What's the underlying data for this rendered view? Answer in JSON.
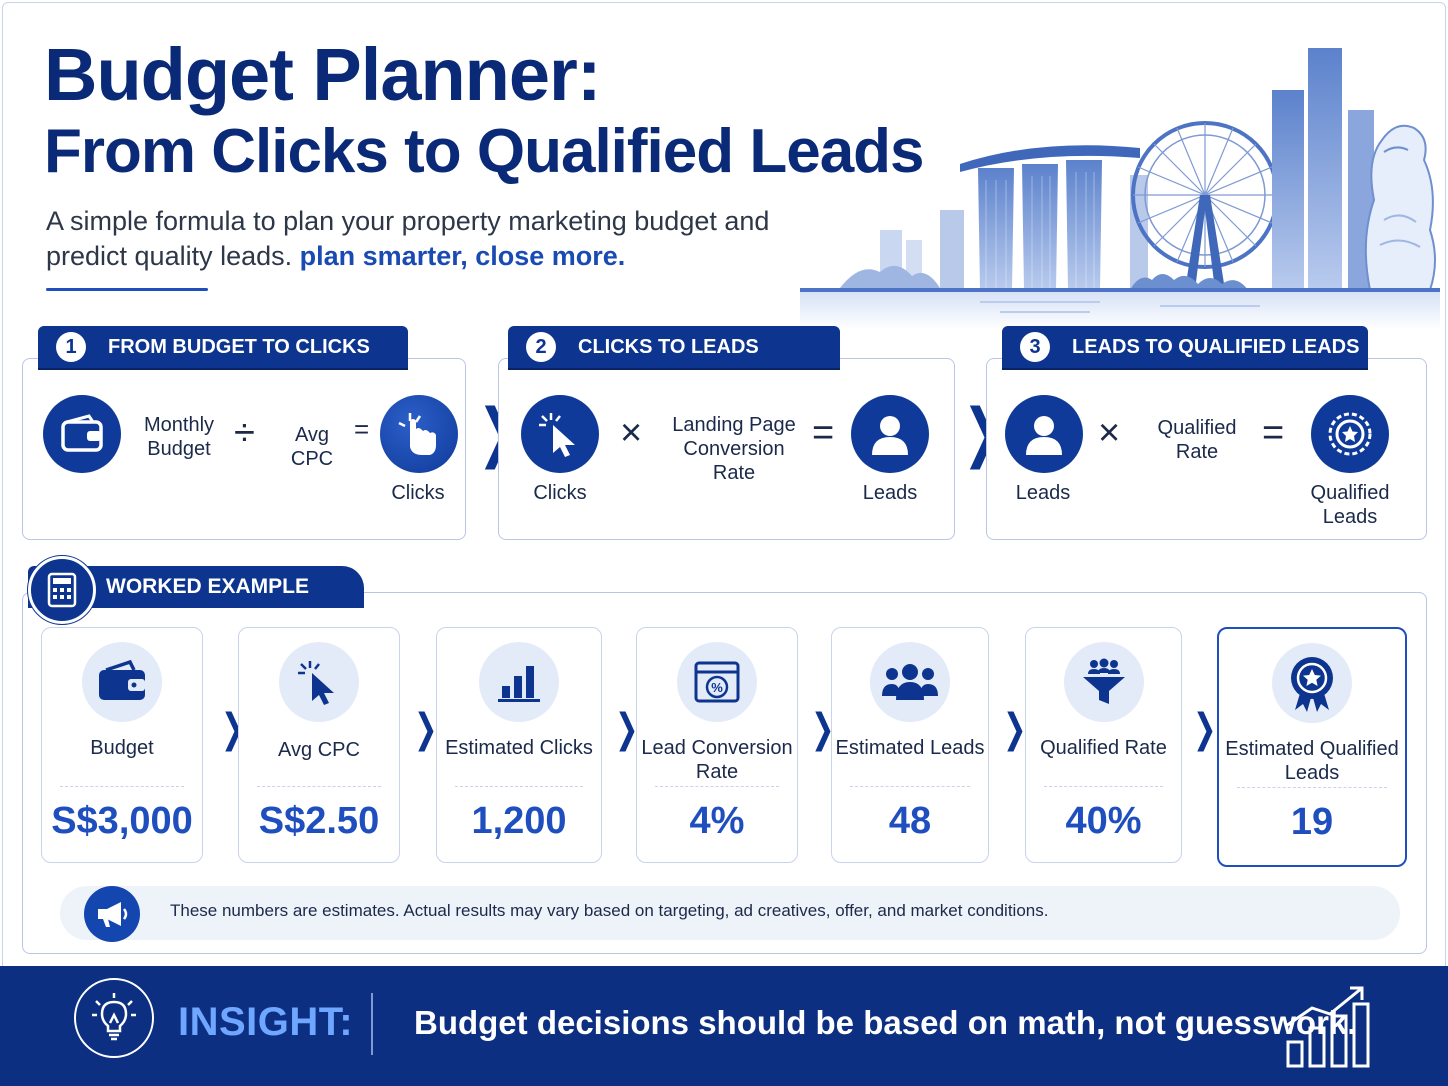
{
  "header": {
    "title_line1": "Budget Planner:",
    "title_line2": "From Clicks to Qualified Leads",
    "subtitle_part1": "A simple formula to plan your property marketing budget and predict quality leads.",
    "subtitle_highlight": "plan smarter, close more."
  },
  "steps": [
    {
      "number": "1",
      "title": "FROM BUDGET TO CLICKS",
      "input_label": "Monthly Budget",
      "operator1": "÷",
      "factor_label": "Avg CPC",
      "operator2": "=",
      "result_label": "Clicks"
    },
    {
      "number": "2",
      "title": "CLICKS TO LEADS",
      "input_label": "Clicks",
      "operator1": "×",
      "factor_label": "Landing Page Conversion Rate",
      "operator2": "=",
      "result_label": "Leads"
    },
    {
      "number": "3",
      "title": "LEADS TO QUALIFIED LEADS",
      "input_label": "Leads",
      "operator1": "×",
      "factor_label": "Qualified Rate",
      "operator2": "=",
      "result_label": "Qualified Leads"
    }
  ],
  "worked_example": {
    "title": "WORKED EXAMPLE",
    "cards": [
      {
        "label": "Budget",
        "value": "S$3,000",
        "icon": "wallet-icon"
      },
      {
        "label": "Avg CPC",
        "value": "S$2.50",
        "icon": "cursor-click-icon"
      },
      {
        "label": "Estimated Clicks",
        "value": "1,200",
        "icon": "bar-chart-icon"
      },
      {
        "label": "Lead Conversion Rate",
        "value": "4%",
        "icon": "percent-browser-icon"
      },
      {
        "label": "Estimated Leads",
        "value": "48",
        "icon": "people-group-icon"
      },
      {
        "label": "Qualified Rate",
        "value": "40%",
        "icon": "funnel-icon"
      },
      {
        "label": "Estimated Qualified Leads",
        "value": "19",
        "icon": "award-badge-icon"
      }
    ],
    "note": "These numbers are estimates.  Actual results may vary based on targeting, ad creatives, offer, and market conditions."
  },
  "insight": {
    "label": "INSIGHT:",
    "text": "Budget decisions should be based on math, not guesswork."
  },
  "colors": {
    "navy": "#0d3590",
    "title": "#0a2a78",
    "accent": "#1f4fbf",
    "insight_bg": "#0c2f82",
    "insight_label": "#6fa6ff"
  }
}
